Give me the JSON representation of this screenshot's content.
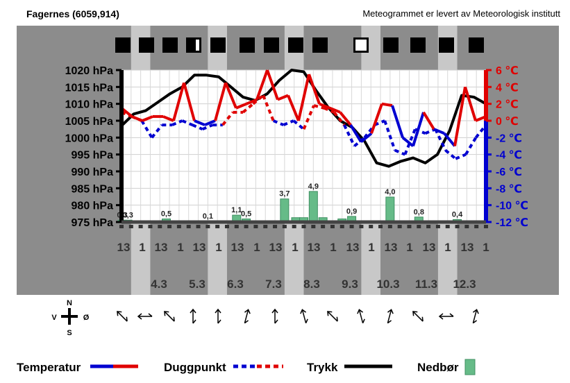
{
  "header": {
    "title": "Fagernes (6059,914)",
    "credit": "Meteogrammet er levert av Meteorologisk institutt"
  },
  "chart_data": {
    "type": "line",
    "title": "",
    "xlabel": "",
    "ylabel": "",
    "left_axis": {
      "unit": "hPa",
      "ticks": [
        "1020 hPa",
        "1015 hPa",
        "1010 hPa",
        "1005 hPa",
        "1000 hPa",
        "995 hPa",
        "990 hPa",
        "985 hPa",
        "980 hPa",
        "975 hPa"
      ],
      "range": [
        975,
        1020
      ]
    },
    "right_axis": {
      "ticks": [
        "6 ℃",
        "4 ℃",
        "2 ℃",
        "0 ℃",
        "-2 ℃",
        "-4 ℃",
        "-6 ℃",
        "-8 ℃",
        "-10 ℃",
        "-12 ℃"
      ],
      "range": [
        -12,
        6
      ]
    },
    "hour_labels": [
      "13",
      "1",
      "13",
      "1",
      "13",
      "1",
      "13",
      "1",
      "13",
      "1",
      "13",
      "1",
      "13",
      "1",
      "13",
      "1",
      "13",
      "1",
      "13",
      "1",
      "13",
      "1"
    ],
    "day_labels": [
      "4.3",
      "5.3",
      "6.3",
      "7.3",
      "8.3",
      "9.3",
      "10.3",
      "11.3",
      "12.3"
    ],
    "sky_cover": [
      "full",
      "full",
      "full",
      "partial",
      "full",
      "full",
      "full",
      "full",
      "full",
      "empty",
      "full",
      "full",
      "full",
      "full"
    ],
    "t_hours": [
      0,
      6,
      12,
      18,
      24,
      30,
      36,
      42,
      48,
      54,
      60,
      66,
      72,
      78,
      84,
      90,
      96,
      102,
      108,
      114,
      120,
      126,
      132,
      138,
      144,
      150,
      156,
      162,
      168,
      174,
      180,
      186,
      192,
      198,
      204,
      210,
      216,
      222,
      228
    ],
    "series": [
      {
        "name": "Trykk",
        "values": [
          1003.5,
          1007,
          1008,
          1010.5,
          1013,
          1015,
          1018.5,
          1018.5,
          1018,
          1015,
          1012,
          1011,
          1013,
          1017,
          1020,
          1019.5,
          1014,
          1009,
          1005,
          1003,
          999,
          992.5,
          991.5,
          993,
          994,
          992.5,
          995,
          1002,
          1012.5,
          1012,
          1010
        ]
      },
      {
        "name": "Temperatur",
        "values": [
          1.5,
          0.5,
          0,
          0.5,
          0.5,
          0,
          4.5,
          0,
          -0.5,
          0,
          4.5,
          1.5,
          2,
          2.5,
          6,
          2.5,
          3,
          0,
          5.5,
          2,
          1.5,
          1,
          -0.5,
          -2.5,
          -1.5,
          2,
          1.8,
          -2,
          -3,
          1,
          -1,
          -1.5,
          -3,
          4,
          0,
          0.5
        ]
      },
      {
        "name": "Duggpunkt",
        "values": [
          1,
          0.5,
          0,
          -2,
          -0.5,
          -0.5,
          0,
          -0.5,
          -1,
          -0.5,
          -0.5,
          1,
          1,
          2,
          3,
          0,
          -0.5,
          0,
          -1,
          1.8,
          1.5,
          1,
          -0.5,
          -3,
          -2,
          -0.5,
          0,
          -3.5,
          -4,
          -1,
          -1.5,
          -1,
          -3.5,
          -4.5,
          -4,
          -2,
          -0.5
        ]
      }
    ],
    "precip": {
      "name": "Nedbør",
      "bars": [
        {
          "t": 0.5,
          "v": 0.3,
          "label": "0,3"
        },
        {
          "t": 4,
          "v": 0.3,
          "label": "0,3"
        },
        {
          "t": 28,
          "v": 0.5,
          "label": "0,5"
        },
        {
          "t": 54,
          "v": 0.1,
          "label": "0,1"
        },
        {
          "t": 72,
          "v": 1.1,
          "label": "1,1"
        },
        {
          "t": 78,
          "v": 0.5,
          "label": "0,5"
        },
        {
          "t": 102,
          "v": 3.7,
          "label": "3,7"
        },
        {
          "t": 109,
          "v": 0.7,
          "label": ""
        },
        {
          "t": 114,
          "v": 0.7,
          "label": ""
        },
        {
          "t": 120,
          "v": 4.9,
          "label": "4,9"
        },
        {
          "t": 126,
          "v": 0.7,
          "label": ""
        },
        {
          "t": 138,
          "v": 0.5,
          "label": ""
        },
        {
          "t": 144,
          "v": 0.9,
          "label": "0,9"
        },
        {
          "t": 150,
          "v": 0.2,
          "label": ""
        },
        {
          "t": 168,
          "v": 4.0,
          "label": "4,0"
        },
        {
          "t": 186,
          "v": 0.8,
          "label": "0,8"
        },
        {
          "t": 192,
          "v": 0.2,
          "label": ""
        },
        {
          "t": 210,
          "v": 0.4,
          "label": "0,4"
        }
      ]
    },
    "wind_directions": [
      "NW",
      "W",
      "NW",
      "S",
      "S",
      "SSE",
      "S",
      "SSW",
      "NW",
      "SSW",
      "SSE",
      "NW",
      "E",
      "SSE"
    ],
    "grid": true
  },
  "wind_compass": {
    "n": "N",
    "s": "S",
    "w": "V",
    "e": "Ø"
  },
  "legend": {
    "temp": "Temperatur",
    "dew": "Duggpunkt",
    "pressure": "Trykk",
    "precip": "Nedbør"
  },
  "colors": {
    "warm": "#e00000",
    "cold": "#0000d0",
    "pressure": "#000000",
    "precip": "#66bb88",
    "band_dark": "#8c8c8c",
    "band_light": "#c8c8c8",
    "plot_bg": "#ffffff"
  }
}
